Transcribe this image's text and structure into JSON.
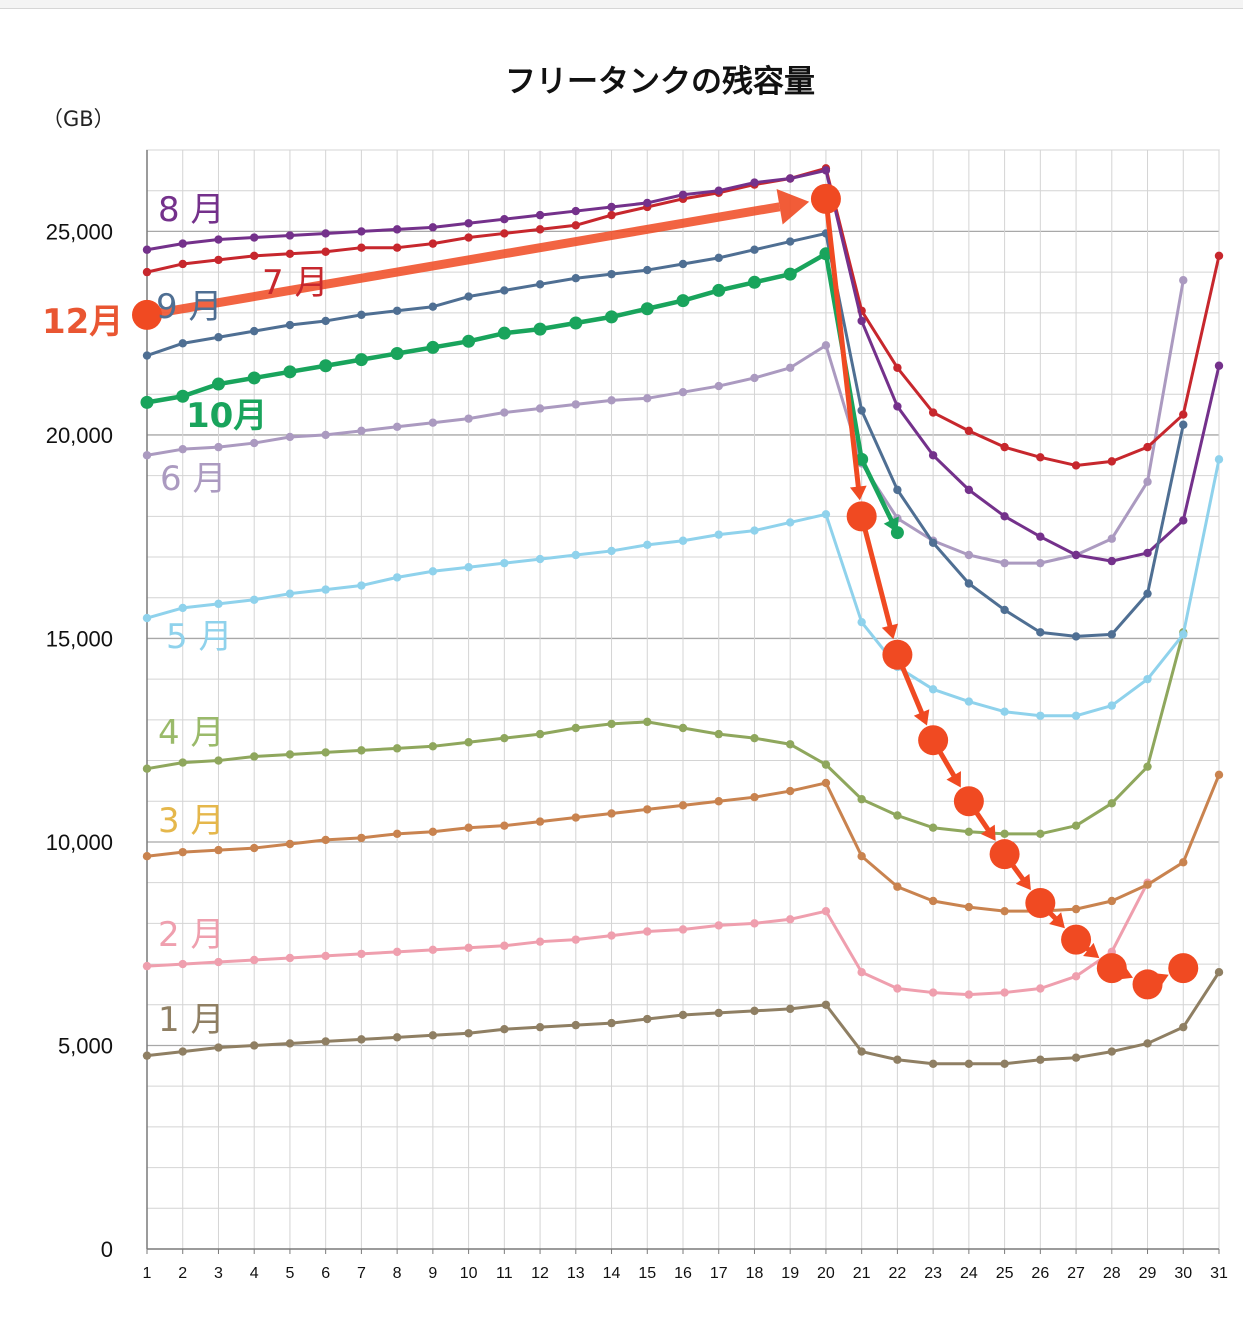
{
  "chart_data": {
    "type": "line",
    "title": "フリータンクの残容量",
    "ylabel": "（GB）",
    "xlabel": "",
    "x": [
      1,
      2,
      3,
      4,
      5,
      6,
      7,
      8,
      9,
      10,
      11,
      12,
      13,
      14,
      15,
      16,
      17,
      18,
      19,
      20,
      21,
      22,
      23,
      24,
      25,
      26,
      27,
      28,
      29,
      30,
      31
    ],
    "ylim": [
      0,
      27000
    ],
    "yticks": [
      0,
      5000,
      10000,
      15000,
      20000,
      25000
    ],
    "ytick_labels": [
      "0",
      "5,000",
      "10,000",
      "15,000",
      "20,000",
      "25,000"
    ],
    "grid": true,
    "series": [
      {
        "name": "1月",
        "color": "#8f7f63",
        "label_color": "#8f7f63",
        "values": [
          4750,
          4850,
          4950,
          5000,
          5050,
          5100,
          5150,
          5200,
          5250,
          5300,
          5400,
          5450,
          5500,
          5550,
          5650,
          5750,
          5800,
          5850,
          5900,
          6000,
          4850,
          4650,
          4550,
          4550,
          4550,
          4650,
          4700,
          4850,
          5050,
          5450,
          6800
        ]
      },
      {
        "name": "2月",
        "color": "#ef9fae",
        "label_color": "#ef9fae",
        "values": [
          6950,
          7000,
          7050,
          7100,
          7150,
          7200,
          7250,
          7300,
          7350,
          7400,
          7450,
          7550,
          7600,
          7700,
          7800,
          7850,
          7950,
          8000,
          8100,
          8300,
          6800,
          6400,
          6300,
          6250,
          6300,
          6400,
          6700,
          7300,
          9000,
          null,
          null
        ]
      },
      {
        "name": "3月",
        "color": "#c9834f",
        "label_color": "#e5b74b",
        "values": [
          9650,
          9750,
          9800,
          9850,
          9950,
          10050,
          10100,
          10200,
          10250,
          10350,
          10400,
          10500,
          10600,
          10700,
          10800,
          10900,
          11000,
          11100,
          11250,
          11450,
          9650,
          8900,
          8550,
          8400,
          8300,
          8300,
          8350,
          8550,
          8950,
          9500,
          11650
        ]
      },
      {
        "name": "4月",
        "color": "#8fa75d",
        "label_color": "#9aba6a",
        "values": [
          11800,
          11950,
          12000,
          12100,
          12150,
          12200,
          12250,
          12300,
          12350,
          12450,
          12550,
          12650,
          12800,
          12900,
          12950,
          12800,
          12650,
          12550,
          12400,
          11900,
          11050,
          10650,
          10350,
          10250,
          10200,
          10200,
          10400,
          10950,
          11850,
          15150,
          null
        ]
      },
      {
        "name": "5月",
        "color": "#8fd2ec",
        "label_color": "#8fd2ec",
        "values": [
          15500,
          15750,
          15850,
          15950,
          16100,
          16200,
          16300,
          16500,
          16650,
          16750,
          16850,
          16950,
          17050,
          17150,
          17300,
          17400,
          17550,
          17650,
          17850,
          18050,
          15400,
          14300,
          13750,
          13450,
          13200,
          13100,
          13100,
          13350,
          14000,
          15100,
          19400
        ]
      },
      {
        "name": "6月",
        "color": "#ab9ac0",
        "label_color": "#ab9ac0",
        "values": [
          19500,
          19650,
          19700,
          19800,
          19950,
          20000,
          20100,
          20200,
          20300,
          20400,
          20550,
          20650,
          20750,
          20850,
          20900,
          21050,
          21200,
          21400,
          21650,
          22200,
          19300,
          17950,
          17400,
          17050,
          16850,
          16850,
          17050,
          17450,
          18850,
          23800,
          null
        ]
      },
      {
        "name": "7月",
        "color": "#c7272d",
        "label_color": "#c7272d",
        "values": [
          24000,
          24200,
          24300,
          24400,
          24450,
          24500,
          24600,
          24600,
          24700,
          24850,
          24950,
          25050,
          25150,
          25400,
          25600,
          25800,
          25950,
          26150,
          26300,
          26550,
          23050,
          21650,
          20550,
          20100,
          19700,
          19450,
          19250,
          19350,
          19700,
          20500,
          24400
        ]
      },
      {
        "name": "8月",
        "color": "#74318b",
        "label_color": "#74318b",
        "values": [
          24550,
          24700,
          24800,
          24850,
          24900,
          24950,
          25000,
          25050,
          25100,
          25200,
          25300,
          25400,
          25500,
          25600,
          25700,
          25900,
          26000,
          26200,
          26300,
          26500,
          22800,
          20700,
          19500,
          18650,
          18000,
          17500,
          17050,
          16900,
          17100,
          17900,
          21700
        ]
      },
      {
        "name": "9月",
        "color": "#4f6f93",
        "label_color": "#4f6f93",
        "values": [
          21950,
          22250,
          22400,
          22550,
          22700,
          22800,
          22950,
          23050,
          23150,
          23400,
          23550,
          23700,
          23850,
          23950,
          24050,
          24200,
          24350,
          24550,
          24750,
          24950,
          20600,
          18650,
          17350,
          16350,
          15700,
          15150,
          15050,
          15100,
          16100,
          20250,
          null
        ]
      },
      {
        "name": "10月",
        "color": "#19a45c",
        "label_color": "#19a45c",
        "values": [
          20800,
          20950,
          21250,
          21400,
          21550,
          21700,
          21850,
          22000,
          22150,
          22300,
          22500,
          22600,
          22750,
          22900,
          23100,
          23300,
          23550,
          23750,
          23950,
          24450,
          19400,
          17600,
          null,
          null,
          null,
          null,
          null,
          null,
          null,
          null,
          null
        ]
      },
      {
        "name": "12月",
        "color": "#f04a22",
        "label_color": "#e95632",
        "values": [
          22950,
          null,
          null,
          null,
          null,
          null,
          null,
          null,
          null,
          null,
          null,
          null,
          null,
          null,
          null,
          null,
          null,
          null,
          null,
          25800,
          18000,
          14600,
          12500,
          11000,
          9700,
          8500,
          7600,
          6900,
          6500,
          6900,
          null
        ]
      }
    ]
  }
}
